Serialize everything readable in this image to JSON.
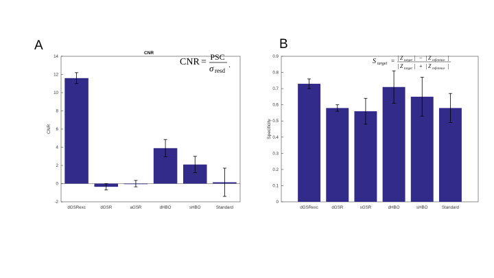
{
  "panels": {
    "A": {
      "letter": "A"
    },
    "B": {
      "letter": "B"
    }
  },
  "colors": {
    "bar": "#332b8a",
    "axis": "#444444",
    "error": "#000000"
  },
  "chart_data": [
    {
      "type": "bar",
      "title": "CNR",
      "xlabel": "",
      "ylabel": "CNR",
      "categories": [
        "dGSRexc",
        "dGSR",
        "aGSR",
        "dHBO",
        "sHBO",
        "Standard"
      ],
      "values": [
        11.6,
        -0.35,
        0.0,
        3.9,
        2.1,
        0.15
      ],
      "errors": [
        0.6,
        0.35,
        0.35,
        0.95,
        0.9,
        1.55
      ],
      "ylim": [
        -2,
        14
      ],
      "yticks": [
        -2,
        0,
        2,
        4,
        6,
        8,
        10,
        12,
        14
      ],
      "annotation": {
        "lhs": "CNR",
        "equals": "=",
        "numerator": "PSC",
        "denominator": "σ",
        "denominator_sub": "resd",
        "trail": "."
      }
    },
    {
      "type": "bar",
      "title": "",
      "xlabel": "",
      "ylabel": "Specificity",
      "categories": [
        "dGSRexc",
        "dGSR",
        "sGSR",
        "dHBO",
        "sHBO",
        "Standard"
      ],
      "values": [
        0.73,
        0.58,
        0.56,
        0.71,
        0.65,
        0.58
      ],
      "errors": [
        0.03,
        0.02,
        0.08,
        0.1,
        0.12,
        0.09
      ],
      "ylim": [
        0,
        0.9
      ],
      "yticks": [
        "0",
        "0.1",
        "0.2",
        "0.3",
        "0.4",
        "0.5",
        "0.6",
        "0.7",
        "0.8",
        "0.9"
      ],
      "annotation": {
        "lhs": "S",
        "lhs_sub": "target",
        "equals": "=",
        "numerator": "|Z_target| − |Z_reference|",
        "denominator": "|Z_target| + |Z_reference|",
        "z": "Z",
        "sub_target": "target",
        "sub_reference": "reference",
        "minus": "−",
        "plus": "+"
      }
    }
  ]
}
